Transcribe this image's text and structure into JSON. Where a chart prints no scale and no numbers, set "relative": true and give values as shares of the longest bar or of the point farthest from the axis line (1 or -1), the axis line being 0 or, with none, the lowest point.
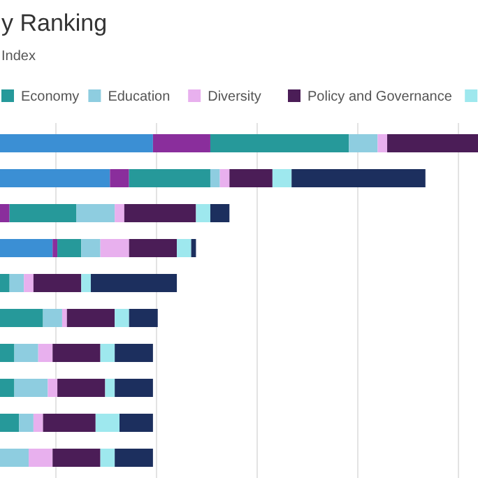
{
  "chart_data": {
    "type": "bar",
    "orientation": "horizontal",
    "stacked": true,
    "relative": true,
    "title": "y Ranking",
    "subtitle": "Index",
    "legend": "top",
    "grid": true,
    "categories": [
      null,
      null,
      null,
      null,
      null,
      null,
      null,
      null,
      null,
      null
    ],
    "series": [
      {
        "color": "#3b8fd4",
        "values": [
          0.32,
          0.23,
          0,
          0.11,
          0,
          0,
          0,
          0,
          0,
          0
        ]
      },
      {
        "color": "#8a2e9c",
        "values": [
          0.12,
          0.04,
          0.02,
          0.01,
          0,
          0,
          0,
          0,
          0,
          0
        ]
      },
      {
        "name": "Economy",
        "color": "#26999a",
        "values": [
          0.29,
          0.17,
          0.14,
          0.05,
          0.02,
          0.09,
          0.03,
          0.03,
          0.04,
          0
        ]
      },
      {
        "name": "Education",
        "color": "#8ecde0",
        "values": [
          0.06,
          0.02,
          0.08,
          0.04,
          0.03,
          0.04,
          0.05,
          0.07,
          0.03,
          0.06
        ]
      },
      {
        "name": "Diversity",
        "color": "#e8b0ee",
        "values": [
          0.02,
          0.02,
          0.02,
          0.06,
          0.02,
          0.01,
          0.03,
          0.02,
          0.02,
          0.05
        ]
      },
      {
        "name": "Policy and Governance",
        "color": "#4b1d57",
        "values": [
          0.19,
          0.09,
          0.15,
          0.1,
          0.1,
          0.1,
          0.1,
          0.1,
          0.11,
          0.1
        ]
      },
      {
        "color": "#9ee8ee",
        "values": [
          0,
          0.04,
          0.03,
          0.03,
          0.02,
          0.03,
          0.03,
          0.02,
          0.05,
          0.03
        ]
      },
      {
        "color": "#1c2f5e",
        "values": [
          0,
          0.28,
          0.04,
          0.01,
          0.18,
          0.06,
          0.08,
          0.08,
          0.07,
          0.08
        ]
      }
    ]
  }
}
